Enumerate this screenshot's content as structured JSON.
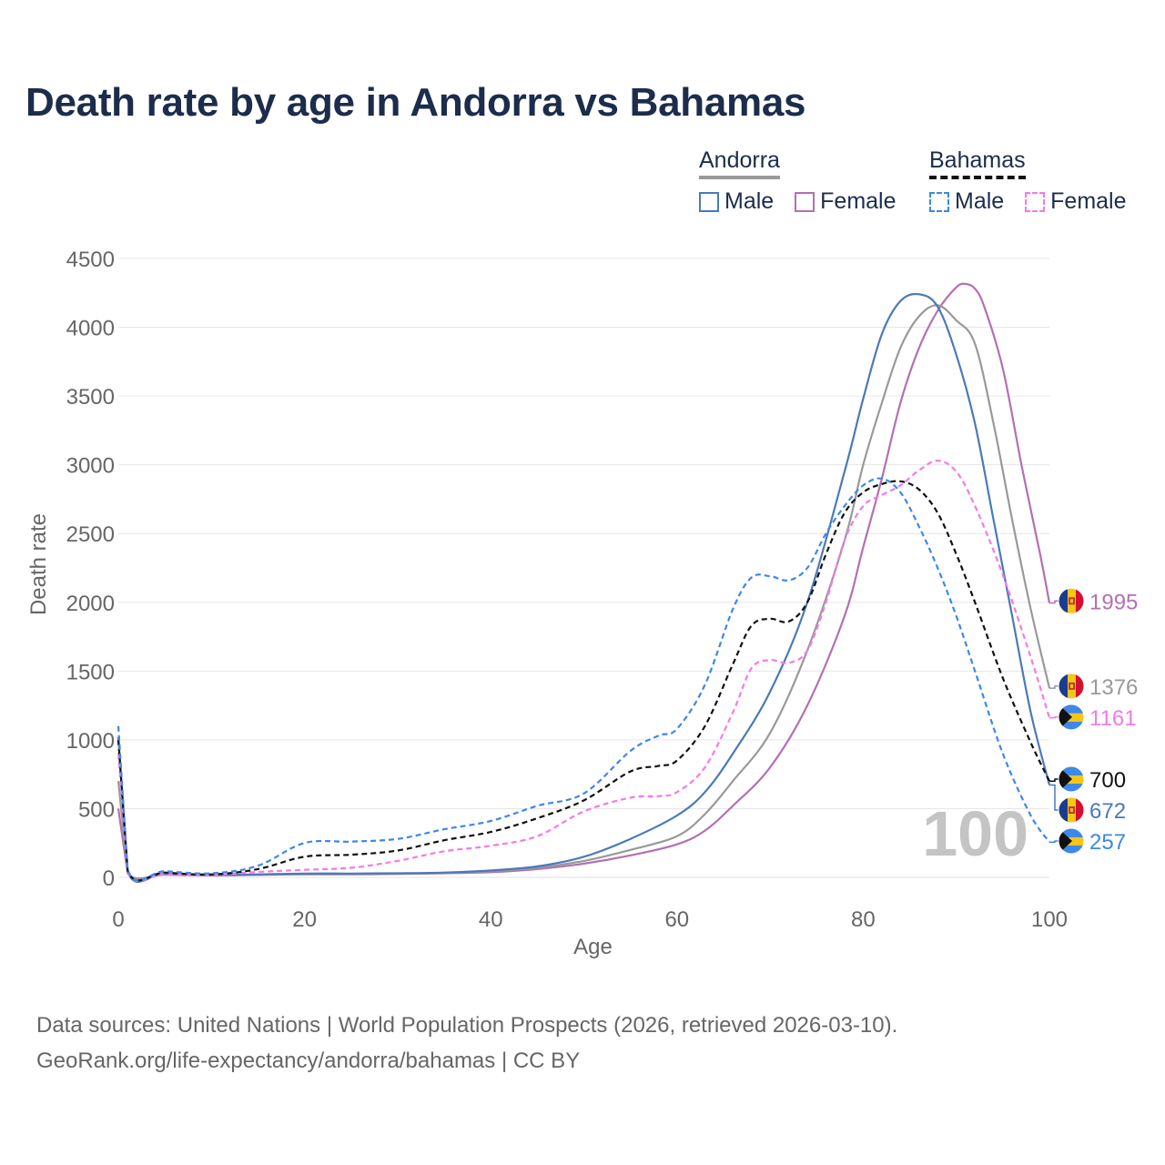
{
  "title": "Death rate by age in Andorra vs Bahamas",
  "legend": {
    "groups": [
      {
        "country": "Andorra",
        "style": "solid",
        "head_color": "#999999",
        "items": [
          {
            "label": "Male",
            "color": "#4a7ab8"
          },
          {
            "label": "Female",
            "color": "#b370b3"
          }
        ]
      },
      {
        "country": "Bahamas",
        "style": "dashed",
        "head_color": "#111111",
        "items": [
          {
            "label": "Male",
            "color": "#3d88e8"
          },
          {
            "label": "Female",
            "color": "#f47ae8"
          }
        ]
      }
    ]
  },
  "watermark_age": "100",
  "source": {
    "line1": "Data sources: United Nations | World Population Prospects (2026, retrieved 2026-03-10).",
    "line2": "GeoRank.org/life-expectancy/andorra/bahamas | CC BY"
  },
  "chart_data": {
    "type": "line",
    "title": "Death rate by age in Andorra vs Bahamas",
    "xlabel": "Age",
    "ylabel": "Death rate",
    "xlim": [
      0,
      100
    ],
    "ylim": [
      0,
      4500
    ],
    "xticks": [
      0,
      20,
      40,
      60,
      80,
      100
    ],
    "yticks": [
      0,
      500,
      1000,
      1500,
      2000,
      2500,
      3000,
      3500,
      4000,
      4500
    ],
    "grid": true,
    "series": [
      {
        "name": "Andorra Female",
        "color": "#b370b3",
        "dash": false,
        "end_label": "1995",
        "end_flag": "andorra",
        "points": [
          [
            0,
            500
          ],
          [
            1,
            30
          ],
          [
            5,
            20
          ],
          [
            10,
            14
          ],
          [
            15,
            18
          ],
          [
            20,
            22
          ],
          [
            25,
            22
          ],
          [
            30,
            25
          ],
          [
            35,
            30
          ],
          [
            40,
            38
          ],
          [
            45,
            60
          ],
          [
            50,
            100
          ],
          [
            55,
            160
          ],
          [
            60,
            240
          ],
          [
            63,
            340
          ],
          [
            66,
            520
          ],
          [
            70,
            800
          ],
          [
            74,
            1250
          ],
          [
            78,
            1900
          ],
          [
            80,
            2400
          ],
          [
            82,
            2900
          ],
          [
            84,
            3450
          ],
          [
            86,
            3850
          ],
          [
            88,
            4120
          ],
          [
            90,
            4290
          ],
          [
            91,
            4315
          ],
          [
            92,
            4280
          ],
          [
            93,
            4150
          ],
          [
            95,
            3700
          ],
          [
            97,
            3000
          ],
          [
            99,
            2350
          ],
          [
            100,
            1995
          ]
        ]
      },
      {
        "name": "Andorra Total",
        "color": "#999999",
        "dash": false,
        "end_label": "1376",
        "end_flag": "andorra",
        "points": [
          [
            0,
            700
          ],
          [
            1,
            40
          ],
          [
            5,
            25
          ],
          [
            10,
            16
          ],
          [
            15,
            20
          ],
          [
            20,
            25
          ],
          [
            25,
            25
          ],
          [
            30,
            28
          ],
          [
            35,
            32
          ],
          [
            40,
            45
          ],
          [
            45,
            70
          ],
          [
            50,
            120
          ],
          [
            55,
            200
          ],
          [
            60,
            300
          ],
          [
            63,
            460
          ],
          [
            66,
            700
          ],
          [
            70,
            1050
          ],
          [
            74,
            1650
          ],
          [
            78,
            2450
          ],
          [
            80,
            3000
          ],
          [
            82,
            3450
          ],
          [
            84,
            3850
          ],
          [
            86,
            4080
          ],
          [
            88,
            4160
          ],
          [
            90,
            4050
          ],
          [
            92,
            3880
          ],
          [
            94,
            3300
          ],
          [
            96,
            2600
          ],
          [
            98,
            1950
          ],
          [
            100,
            1376
          ]
        ]
      },
      {
        "name": "Andorra Male",
        "color": "#4a7ab8",
        "dash": false,
        "end_label": "672",
        "end_flag": "andorra",
        "points": [
          [
            0,
            1020
          ],
          [
            1,
            45
          ],
          [
            5,
            30
          ],
          [
            10,
            18
          ],
          [
            15,
            22
          ],
          [
            20,
            28
          ],
          [
            25,
            28
          ],
          [
            30,
            30
          ],
          [
            35,
            35
          ],
          [
            40,
            50
          ],
          [
            45,
            80
          ],
          [
            50,
            150
          ],
          [
            55,
            280
          ],
          [
            60,
            450
          ],
          [
            63,
            620
          ],
          [
            66,
            900
          ],
          [
            70,
            1350
          ],
          [
            74,
            2000
          ],
          [
            78,
            2950
          ],
          [
            80,
            3480
          ],
          [
            82,
            3950
          ],
          [
            84,
            4190
          ],
          [
            86,
            4240
          ],
          [
            88,
            4150
          ],
          [
            90,
            3800
          ],
          [
            92,
            3300
          ],
          [
            94,
            2600
          ],
          [
            96,
            1900
          ],
          [
            98,
            1200
          ],
          [
            100,
            672
          ]
        ]
      },
      {
        "name": "Bahamas Female",
        "color": "#f47ae8",
        "dash": true,
        "end_label": "1161",
        "end_flag": "bahamas",
        "points": [
          [
            0,
            900
          ],
          [
            1,
            45
          ],
          [
            5,
            25
          ],
          [
            10,
            18
          ],
          [
            15,
            40
          ],
          [
            20,
            55
          ],
          [
            25,
            70
          ],
          [
            30,
            120
          ],
          [
            35,
            190
          ],
          [
            40,
            230
          ],
          [
            45,
            300
          ],
          [
            50,
            480
          ],
          [
            55,
            580
          ],
          [
            58,
            590
          ],
          [
            60,
            620
          ],
          [
            63,
            800
          ],
          [
            66,
            1200
          ],
          [
            68,
            1520
          ],
          [
            70,
            1580
          ],
          [
            72,
            1560
          ],
          [
            74,
            1650
          ],
          [
            76,
            2000
          ],
          [
            78,
            2450
          ],
          [
            80,
            2700
          ],
          [
            82,
            2780
          ],
          [
            84,
            2850
          ],
          [
            86,
            2960
          ],
          [
            88,
            3030
          ],
          [
            90,
            2950
          ],
          [
            92,
            2700
          ],
          [
            95,
            2200
          ],
          [
            98,
            1600
          ],
          [
            100,
            1161
          ]
        ]
      },
      {
        "name": "Bahamas Total",
        "color": "#111111",
        "dash": true,
        "end_label": "700",
        "end_flag": "bahamas",
        "points": [
          [
            0,
            1000
          ],
          [
            1,
            55
          ],
          [
            5,
            35
          ],
          [
            10,
            22
          ],
          [
            15,
            60
          ],
          [
            20,
            150
          ],
          [
            25,
            165
          ],
          [
            30,
            195
          ],
          [
            35,
            270
          ],
          [
            40,
            330
          ],
          [
            45,
            430
          ],
          [
            50,
            560
          ],
          [
            55,
            770
          ],
          [
            58,
            810
          ],
          [
            60,
            850
          ],
          [
            63,
            1100
          ],
          [
            66,
            1550
          ],
          [
            68,
            1830
          ],
          [
            70,
            1880
          ],
          [
            72,
            1860
          ],
          [
            74,
            2000
          ],
          [
            76,
            2350
          ],
          [
            78,
            2650
          ],
          [
            80,
            2800
          ],
          [
            82,
            2860
          ],
          [
            84,
            2880
          ],
          [
            86,
            2820
          ],
          [
            88,
            2650
          ],
          [
            90,
            2350
          ],
          [
            92,
            2000
          ],
          [
            95,
            1450
          ],
          [
            98,
            980
          ],
          [
            100,
            700
          ]
        ]
      },
      {
        "name": "Bahamas Male",
        "color": "#3d88e8",
        "dash": true,
        "end_label": "257",
        "end_flag": "bahamas",
        "points": [
          [
            0,
            1100
          ],
          [
            1,
            60
          ],
          [
            5,
            45
          ],
          [
            10,
            30
          ],
          [
            15,
            85
          ],
          [
            20,
            250
          ],
          [
            25,
            260
          ],
          [
            30,
            280
          ],
          [
            35,
            350
          ],
          [
            40,
            410
          ],
          [
            45,
            520
          ],
          [
            50,
            610
          ],
          [
            55,
            920
          ],
          [
            58,
            1030
          ],
          [
            60,
            1080
          ],
          [
            63,
            1400
          ],
          [
            66,
            1950
          ],
          [
            68,
            2180
          ],
          [
            70,
            2190
          ],
          [
            72,
            2160
          ],
          [
            74,
            2250
          ],
          [
            76,
            2500
          ],
          [
            78,
            2700
          ],
          [
            80,
            2850
          ],
          [
            82,
            2900
          ],
          [
            84,
            2800
          ],
          [
            86,
            2550
          ],
          [
            88,
            2250
          ],
          [
            90,
            1900
          ],
          [
            92,
            1500
          ],
          [
            95,
            900
          ],
          [
            98,
            450
          ],
          [
            100,
            257
          ]
        ]
      }
    ]
  }
}
